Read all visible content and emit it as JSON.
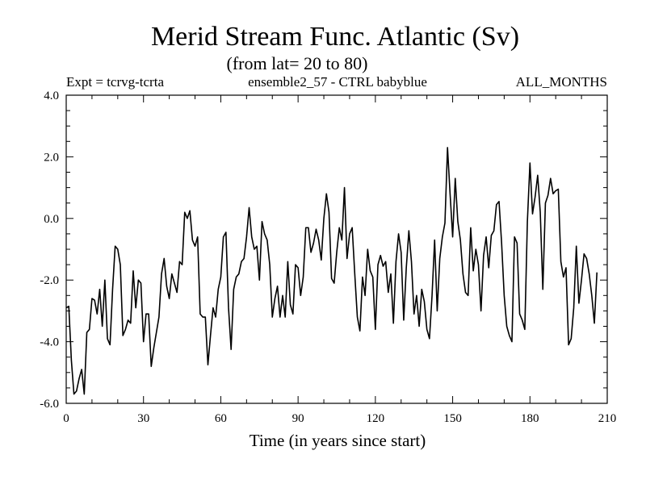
{
  "chart_data": {
    "type": "line",
    "title": "Merid Stream Func. Atlantic (Sv)",
    "subtitle": "(from lat= 20 to 80)",
    "annotations": {
      "left": "Expt = tcrvg-tcrta",
      "center": "ensemble2_57 - CTRL babyblue",
      "right": "ALL_MONTHS"
    },
    "xlabel": "Time (in years since start)",
    "ylabel": "",
    "xlim": [
      0,
      210
    ],
    "ylim": [
      -6.0,
      4.0
    ],
    "xticks": [
      0,
      30,
      60,
      90,
      120,
      150,
      180,
      210
    ],
    "xtick_labels": [
      "0",
      "30",
      "60",
      "90",
      "120",
      "150",
      "180",
      "210"
    ],
    "yticks": [
      -6.0,
      -4.0,
      -2.0,
      0.0,
      2.0,
      4.0
    ],
    "ytick_labels": [
      "-6.0",
      "-4.0",
      "-2.0",
      "0.0",
      "2.0",
      "4.0"
    ],
    "grid": false,
    "series": [
      {
        "name": "Merid Stream Func.",
        "color": "#000000",
        "values": [
          -2.9,
          -2.85,
          -4.6,
          -5.7,
          -5.6,
          -5.2,
          -4.9,
          -5.7,
          -3.7,
          -3.6,
          -2.6,
          -2.65,
          -3.1,
          -2.3,
          -3.5,
          -2.0,
          -3.9,
          -4.1,
          -2.3,
          -0.9,
          -1.0,
          -1.5,
          -3.8,
          -3.6,
          -3.3,
          -3.4,
          -1.7,
          -2.9,
          -2.0,
          -2.1,
          -4.0,
          -3.1,
          -3.1,
          -4.8,
          -4.2,
          -3.7,
          -3.2,
          -1.8,
          -1.3,
          -2.2,
          -2.6,
          -1.8,
          -2.1,
          -2.4,
          -1.4,
          -1.5,
          0.2,
          0.0,
          0.25,
          -0.7,
          -0.9,
          -0.6,
          -3.1,
          -3.2,
          -3.2,
          -4.75,
          -3.8,
          -2.9,
          -3.2,
          -2.3,
          -1.9,
          -0.6,
          -0.45,
          -2.9,
          -4.25,
          -2.3,
          -1.9,
          -1.8,
          -1.4,
          -1.3,
          -0.6,
          0.35,
          -0.6,
          -1.0,
          -0.9,
          -2.0,
          -0.1,
          -0.5,
          -0.7,
          -1.5,
          -3.2,
          -2.6,
          -2.2,
          -3.2,
          -2.5,
          -3.2,
          -1.4,
          -2.8,
          -3.1,
          -1.5,
          -1.6,
          -2.5,
          -1.9,
          -0.3,
          -0.3,
          -1.1,
          -0.8,
          -0.35,
          -0.7,
          -1.35,
          0.0,
          0.8,
          0.2,
          -1.95,
          -2.1,
          -1.1,
          -0.3,
          -0.7,
          1.0,
          -1.3,
          -0.5,
          -0.3,
          -1.8,
          -3.2,
          -3.65,
          -1.9,
          -2.5,
          -1.0,
          -1.7,
          -1.9,
          -3.6,
          -1.5,
          -1.2,
          -1.55,
          -1.4,
          -2.4,
          -1.8,
          -3.4,
          -1.4,
          -0.5,
          -1.1,
          -3.3,
          -1.6,
          -0.4,
          -1.4,
          -3.1,
          -2.5,
          -3.5,
          -2.3,
          -2.7,
          -3.6,
          -3.9,
          -2.5,
          -0.7,
          -3.0,
          -1.3,
          -0.6,
          -0.15,
          2.3,
          0.8,
          -0.6,
          1.3,
          -0.1,
          -0.7,
          -1.8,
          -2.4,
          -2.5,
          -0.3,
          -1.7,
          -1.0,
          -1.5,
          -3.0,
          -1.2,
          -0.6,
          -1.6,
          -0.55,
          -0.4,
          0.45,
          0.55,
          -0.8,
          -2.5,
          -3.5,
          -3.8,
          -4.0,
          -0.6,
          -0.8,
          -3.1,
          -3.3,
          -3.6,
          -0.1,
          1.8,
          0.15,
          0.7,
          1.4,
          0.2,
          -2.3,
          0.5,
          0.75,
          1.3,
          0.8,
          0.9,
          0.95,
          -1.4,
          -1.9,
          -1.6,
          -4.1,
          -3.9,
          -2.9,
          -0.9,
          -2.75,
          -2.0,
          -1.15,
          -1.3,
          -1.8,
          -2.5,
          -3.4,
          -1.75
        ]
      }
    ]
  }
}
